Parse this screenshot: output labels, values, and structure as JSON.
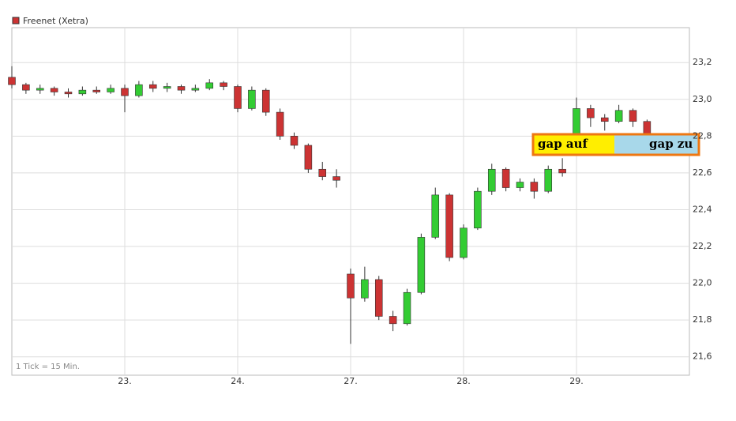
{
  "chart_data": {
    "type": "candlestick",
    "series": [
      {
        "name": "Freenet (Xetra)",
        "color": "#cc3333",
        "up_color": "#33cc33",
        "down_color": "#cc3333",
        "x": [
          0,
          0.125,
          0.25,
          0.375,
          0.5,
          0.625,
          0.75,
          0.875,
          1,
          1.125,
          1.25,
          1.375,
          1.5,
          1.625,
          1.75,
          1.875,
          2,
          2.125,
          2.25,
          2.375,
          2.5,
          2.625,
          2.75,
          2.875,
          3,
          3.125,
          3.25,
          3.375,
          3.5,
          3.625,
          3.75,
          3.875,
          4,
          4.125,
          4.25,
          4.375,
          4.5,
          4.625,
          4.75,
          4.875,
          5,
          5.125,
          5.25,
          5.375,
          5.5,
          5.625
        ],
        "open": [
          23.12,
          23.08,
          23.05,
          23.06,
          23.04,
          23.03,
          23.05,
          23.04,
          23.06,
          23.02,
          23.08,
          23.06,
          23.07,
          23.05,
          23.06,
          23.09,
          23.07,
          22.95,
          23.05,
          22.93,
          22.8,
          22.75,
          22.62,
          22.58,
          22.05,
          21.92,
          22.02,
          21.82,
          21.78,
          21.95,
          22.25,
          22.48,
          22.14,
          22.3,
          22.5,
          22.62,
          22.52,
          22.55,
          22.5,
          22.62,
          22.8,
          22.95,
          22.9,
          22.88,
          22.94,
          22.88
        ],
        "high": [
          23.18,
          23.09,
          23.08,
          23.07,
          23.06,
          23.07,
          23.07,
          23.08,
          23.08,
          23.1,
          23.1,
          23.09,
          23.08,
          23.08,
          23.11,
          23.1,
          23.08,
          23.07,
          23.06,
          22.95,
          22.82,
          22.76,
          22.66,
          22.62,
          22.08,
          22.09,
          22.04,
          21.85,
          21.97,
          22.27,
          22.52,
          22.49,
          22.32,
          22.52,
          22.65,
          22.63,
          22.57,
          22.57,
          22.64,
          22.68,
          23.01,
          22.97,
          22.92,
          22.97,
          22.95,
          22.89
        ],
        "low": [
          23.06,
          23.03,
          23.03,
          23.02,
          23.01,
          23.02,
          23.03,
          23.03,
          22.93,
          23.01,
          23.04,
          23.04,
          23.03,
          23.04,
          23.05,
          23.05,
          22.93,
          22.94,
          22.91,
          22.78,
          22.73,
          22.6,
          22.56,
          22.52,
          21.67,
          21.9,
          21.8,
          21.74,
          21.77,
          21.94,
          22.24,
          22.12,
          22.13,
          22.29,
          22.48,
          22.5,
          22.5,
          22.46,
          22.49,
          22.58,
          22.79,
          22.85,
          22.83,
          22.87,
          22.85,
          22.76
        ],
        "close": [
          23.08,
          23.05,
          23.06,
          23.04,
          23.03,
          23.05,
          23.04,
          23.06,
          23.02,
          23.08,
          23.06,
          23.07,
          23.05,
          23.06,
          23.09,
          23.07,
          22.95,
          23.05,
          22.93,
          22.8,
          22.75,
          22.62,
          22.58,
          22.56,
          21.92,
          22.02,
          21.82,
          21.78,
          21.95,
          22.25,
          22.48,
          22.14,
          22.3,
          22.5,
          22.62,
          22.52,
          22.55,
          22.5,
          22.62,
          22.6,
          22.95,
          22.9,
          22.88,
          22.94,
          22.88,
          22.8
        ]
      }
    ],
    "xlim": [
      0,
      6
    ],
    "xticks": [
      {
        "value": 1,
        "label": "23."
      },
      {
        "value": 2,
        "label": "24."
      },
      {
        "value": 3,
        "label": "27."
      },
      {
        "value": 4,
        "label": "28."
      },
      {
        "value": 5,
        "label": "29."
      }
    ],
    "ylim": [
      21.5,
      23.39
    ],
    "yticks": [
      {
        "value": 21.6,
        "label": "21,6"
      },
      {
        "value": 21.8,
        "label": "21,8"
      },
      {
        "value": 22.0,
        "label": "22,0"
      },
      {
        "value": 22.2,
        "label": "22,2"
      },
      {
        "value": 22.4,
        "label": "22,4"
      },
      {
        "value": 22.6,
        "label": "22,6"
      },
      {
        "value": 22.8,
        "label": "22,8"
      },
      {
        "value": 23.0,
        "label": "23,0"
      },
      {
        "value": 23.2,
        "label": "23,2"
      }
    ],
    "grid": true,
    "footnote": "1 Tick = 15 Min.",
    "annotations": [
      "gap auf",
      "gap zu"
    ]
  }
}
